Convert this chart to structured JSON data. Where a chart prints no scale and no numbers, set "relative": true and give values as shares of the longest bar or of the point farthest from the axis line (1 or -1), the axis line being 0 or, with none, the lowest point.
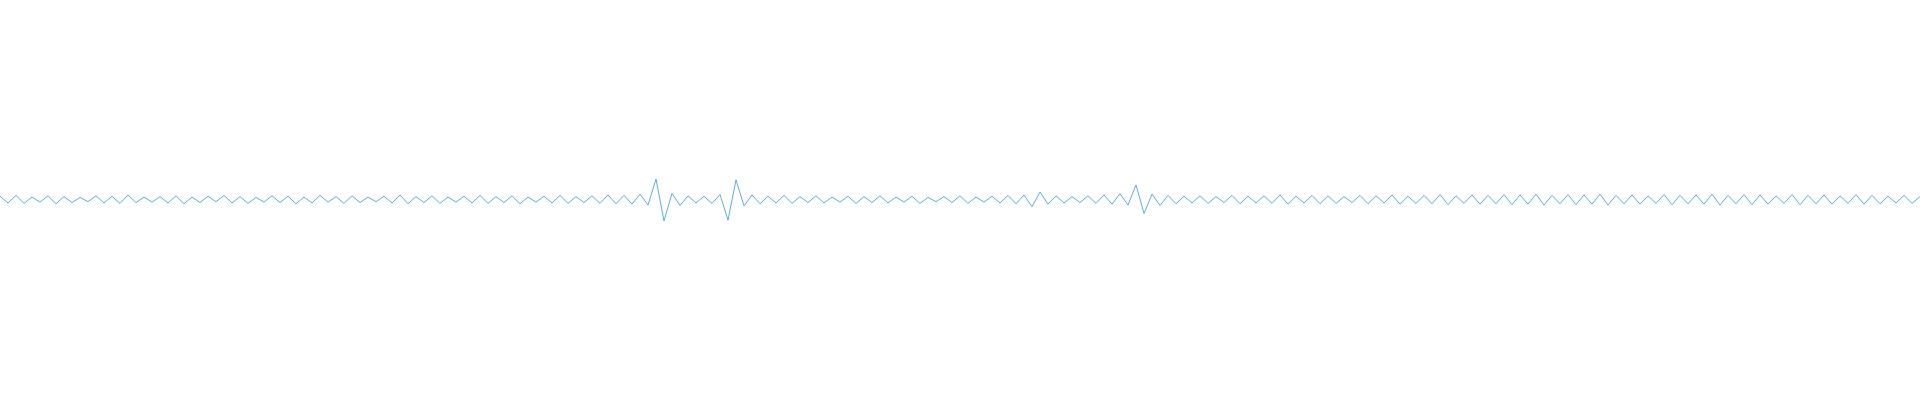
{
  "chart_data": {
    "type": "line",
    "relative": true,
    "color": "#5dade2",
    "categories": [
      null,
      null,
      null,
      null,
      null,
      null,
      null,
      null,
      null,
      null,
      null,
      null,
      null,
      null,
      null,
      null,
      null,
      null,
      null,
      null,
      null,
      null,
      null,
      null,
      null,
      null,
      null,
      null,
      null,
      null,
      null,
      null,
      null,
      null,
      null,
      null,
      null,
      null,
      null,
      null,
      null,
      null,
      null,
      null,
      null,
      null,
      null,
      null,
      null,
      null,
      null,
      null,
      null,
      null,
      null,
      null,
      null,
      null,
      null,
      null,
      null,
      null,
      null,
      null,
      null,
      null,
      null,
      null,
      null,
      null,
      null,
      null,
      null,
      null,
      null,
      null,
      null,
      null,
      null,
      null,
      null,
      null,
      null,
      null,
      null,
      null,
      null,
      null,
      null,
      null,
      null,
      null,
      null,
      null,
      null,
      null,
      null,
      null,
      null,
      null,
      null,
      null,
      null,
      null,
      null,
      null,
      null,
      null,
      null,
      null,
      null,
      null,
      null,
      null,
      null,
      null,
      null,
      null,
      null,
      null,
      null,
      null,
      null,
      null,
      null,
      null,
      null,
      null,
      null,
      null,
      null,
      null,
      null,
      null,
      null,
      null,
      null,
      null,
      null,
      null,
      null,
      null,
      null,
      null,
      null,
      null,
      null,
      null,
      null,
      null,
      null,
      null,
      null,
      null,
      null,
      null,
      null,
      null,
      null,
      null,
      null,
      null,
      null,
      null,
      null,
      null,
      null,
      null,
      null,
      null,
      null,
      null,
      null,
      null,
      null,
      null,
      null,
      null,
      null,
      null,
      null,
      null,
      null,
      null,
      null,
      null,
      null,
      null,
      null,
      null,
      null,
      null,
      null,
      null,
      null,
      null,
      null,
      null,
      null,
      null,
      null,
      null,
      null,
      null,
      null,
      null,
      null,
      null,
      null,
      null,
      null,
      null,
      null,
      null,
      null,
      null,
      null,
      null,
      null,
      null,
      null,
      null,
      null,
      null,
      null,
      null,
      null,
      null,
      null,
      null,
      null,
      null,
      null,
      null,
      null,
      null,
      null,
      null,
      null,
      null,
      null
    ],
    "values": [
      0.59,
      0.43,
      0.61,
      0.42,
      0.57,
      0.45,
      0.6,
      0.41,
      0.58,
      0.44,
      0.56,
      0.46,
      0.6,
      0.43,
      0.59,
      0.42,
      0.62,
      0.44,
      0.57,
      0.45,
      0.58,
      0.43,
      0.6,
      0.41,
      0.57,
      0.44,
      0.59,
      0.46,
      0.61,
      0.43,
      0.58,
      0.42,
      0.56,
      0.45,
      0.6,
      0.44,
      0.59,
      0.41,
      0.57,
      0.43,
      0.61,
      0.45,
      0.58,
      0.42,
      0.6,
      0.44,
      0.57,
      0.46,
      0.59,
      0.43,
      0.62,
      0.41,
      0.58,
      0.44,
      0.6,
      0.42,
      0.57,
      0.45,
      0.59,
      0.43,
      0.61,
      0.42,
      0.58,
      0.44,
      0.6,
      0.41,
      0.57,
      0.45,
      0.59,
      0.43,
      0.61,
      0.42,
      0.58,
      0.44,
      0.6,
      0.42,
      0.62,
      0.41,
      0.61,
      0.4,
      0.64,
      0.38,
      1.0,
      0.0,
      0.66,
      0.37,
      0.6,
      0.43,
      0.59,
      0.42,
      0.63,
      0.02,
      0.98,
      0.36,
      0.62,
      0.41,
      0.59,
      0.43,
      0.61,
      0.42,
      0.58,
      0.44,
      0.6,
      0.43,
      0.57,
      0.45,
      0.59,
      0.42,
      0.58,
      0.44,
      0.6,
      0.43,
      0.57,
      0.45,
      0.59,
      0.42,
      0.56,
      0.46,
      0.58,
      0.44,
      0.6,
      0.42,
      0.57,
      0.45,
      0.59,
      0.43,
      0.61,
      0.41,
      0.62,
      0.34,
      0.69,
      0.4,
      0.6,
      0.43,
      0.58,
      0.44,
      0.6,
      0.42,
      0.62,
      0.4,
      0.65,
      0.38,
      0.86,
      0.18,
      0.64,
      0.37,
      0.61,
      0.41,
      0.59,
      0.43,
      0.6,
      0.42,
      0.58,
      0.44,
      0.61,
      0.41,
      0.59,
      0.43,
      0.6,
      0.42,
      0.62,
      0.4,
      0.59,
      0.43,
      0.61,
      0.41,
      0.6,
      0.42,
      0.58,
      0.44,
      0.61,
      0.41,
      0.6,
      0.43,
      0.62,
      0.4,
      0.59,
      0.42,
      0.61,
      0.41,
      0.63,
      0.39,
      0.6,
      0.42,
      0.62,
      0.4,
      0.61,
      0.41,
      0.63,
      0.39,
      0.62,
      0.4,
      0.64,
      0.38,
      0.61,
      0.41,
      0.63,
      0.39,
      0.62,
      0.4,
      0.64,
      0.38,
      0.61,
      0.41,
      0.62,
      0.4,
      0.6,
      0.42,
      0.63,
      0.39,
      0.61,
      0.41,
      0.62,
      0.4,
      0.64,
      0.38,
      0.61,
      0.41,
      0.63,
      0.39,
      0.62,
      0.4,
      0.6,
      0.42,
      0.63,
      0.39,
      0.61,
      0.41,
      0.62,
      0.4,
      0.6,
      0.42,
      0.63,
      0.4,
      0.61,
      0.41,
      0.59,
      0.43,
      0.61,
      0.42,
      0.58
    ]
  }
}
